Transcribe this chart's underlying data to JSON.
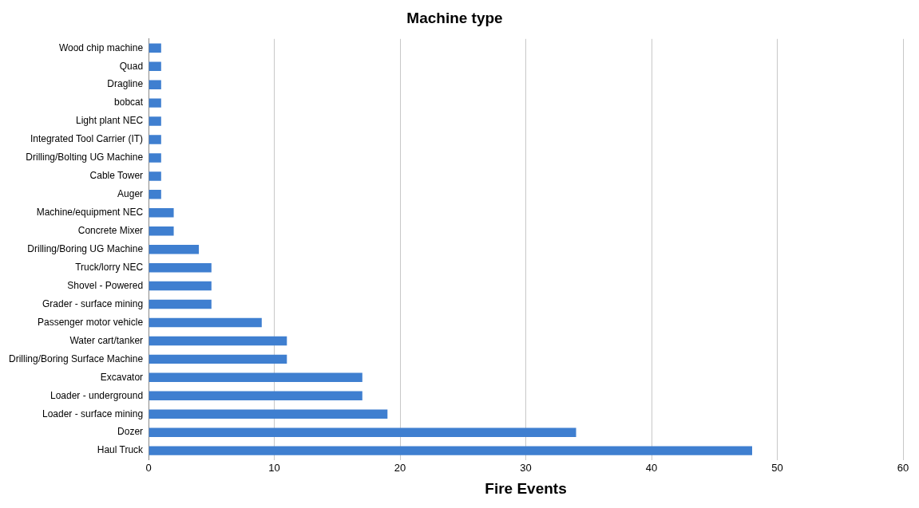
{
  "chart_data": {
    "type": "bar",
    "orientation": "horizontal",
    "title": "Machine type",
    "xlabel": "Fire Events",
    "categories": [
      "Wood chip machine",
      "Quad",
      "Dragline",
      "bobcat",
      "Light plant NEC",
      "Integrated Tool Carrier (IT)",
      "Drilling/Bolting UG Machine",
      "Cable Tower",
      "Auger",
      "Machine/equipment NEC",
      "Concrete Mixer",
      "Drilling/Boring UG Machine",
      "Truck/lorry NEC",
      "Shovel - Powered",
      "Grader - surface mining",
      "Passenger motor vehicle",
      "Water cart/tanker",
      "Drilling/Boring Surface Machine",
      "Excavator",
      "Loader - underground",
      "Loader - surface mining",
      "Dozer",
      "Haul Truck"
    ],
    "values": [
      1,
      1,
      1,
      1,
      1,
      1,
      1,
      1,
      1,
      2,
      2,
      4,
      5,
      5,
      5,
      9,
      11,
      11,
      17,
      17,
      19,
      34,
      48
    ],
    "color": "#3f7fd0",
    "xlim": [
      0,
      60
    ],
    "xticks": [
      0,
      10,
      20,
      30,
      40,
      50,
      60
    ],
    "grid": "x",
    "legend": false
  }
}
